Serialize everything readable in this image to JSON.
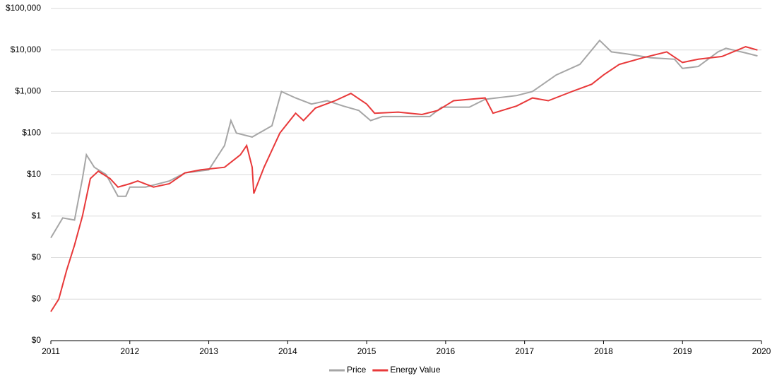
{
  "chart_data": {
    "type": "line",
    "log_y": true,
    "grid": true,
    "legend": "bottom",
    "xlim": [
      2011,
      2020
    ],
    "xticks": [
      2011,
      2012,
      2013,
      2014,
      2015,
      2016,
      2017,
      2018,
      2019,
      2020
    ],
    "ylim": [
      0.001,
      100000
    ],
    "yticks": [
      {
        "value": 0.001,
        "label": "$0"
      },
      {
        "value": 0.01,
        "label": "$0"
      },
      {
        "value": 0.1,
        "label": "$0"
      },
      {
        "value": 1,
        "label": "$1"
      },
      {
        "value": 10,
        "label": "$10"
      },
      {
        "value": 100,
        "label": "$100"
      },
      {
        "value": 1000,
        "label": "$1,000"
      },
      {
        "value": 10000,
        "label": "$10,000"
      },
      {
        "value": 100000,
        "label": "$100,000"
      }
    ],
    "series": [
      {
        "name": "Price",
        "color": "#a6a6a6",
        "x": [
          2011.0,
          2011.15,
          2011.3,
          2011.4,
          2011.45,
          2011.55,
          2011.7,
          2011.85,
          2011.95,
          2012.0,
          2012.2,
          2012.5,
          2012.7,
          2013.0,
          2013.2,
          2013.28,
          2013.35,
          2013.55,
          2013.8,
          2013.92,
          2014.1,
          2014.3,
          2014.5,
          2014.7,
          2014.9,
          2015.05,
          2015.2,
          2015.5,
          2015.8,
          2015.95,
          2016.3,
          2016.5,
          2016.9,
          2017.1,
          2017.4,
          2017.7,
          2017.95,
          2018.1,
          2018.3,
          2018.6,
          2018.9,
          2019.0,
          2019.2,
          2019.45,
          2019.55,
          2019.8,
          2019.95
        ],
        "values": [
          0.3,
          0.9,
          0.8,
          8,
          30,
          15,
          10,
          3,
          3,
          5,
          5,
          7,
          11,
          13,
          50,
          200,
          100,
          80,
          150,
          1000,
          700,
          500,
          600,
          450,
          350,
          200,
          250,
          250,
          250,
          420,
          420,
          650,
          800,
          1000,
          2500,
          4500,
          17000,
          9000,
          8000,
          6500,
          6000,
          3600,
          4000,
          9000,
          11000,
          8500,
          7200
        ]
      },
      {
        "name": "Energy Value",
        "color": "#e8393a",
        "x": [
          2011.0,
          2011.1,
          2011.2,
          2011.3,
          2011.4,
          2011.5,
          2011.6,
          2011.75,
          2011.85,
          2012.0,
          2012.1,
          2012.3,
          2012.5,
          2012.7,
          2012.9,
          2013.2,
          2013.4,
          2013.48,
          2013.55,
          2013.57,
          2013.7,
          2013.9,
          2014.1,
          2014.2,
          2014.35,
          2014.6,
          2014.8,
          2015.0,
          2015.1,
          2015.4,
          2015.7,
          2015.9,
          2016.1,
          2016.5,
          2016.6,
          2016.9,
          2017.1,
          2017.3,
          2017.6,
          2017.85,
          2018.0,
          2018.2,
          2018.5,
          2018.8,
          2019.0,
          2019.2,
          2019.5,
          2019.8,
          2019.95
        ],
        "values": [
          0.005,
          0.01,
          0.05,
          0.2,
          1,
          8,
          12,
          8,
          5,
          6,
          7,
          5,
          6,
          11,
          13,
          15,
          30,
          50,
          15,
          3.5,
          15,
          100,
          300,
          200,
          400,
          600,
          900,
          500,
          300,
          320,
          280,
          350,
          600,
          700,
          300,
          450,
          700,
          600,
          1000,
          1500,
          2500,
          4500,
          6500,
          9000,
          5000,
          6000,
          7000,
          12000,
          10000
        ]
      }
    ]
  }
}
